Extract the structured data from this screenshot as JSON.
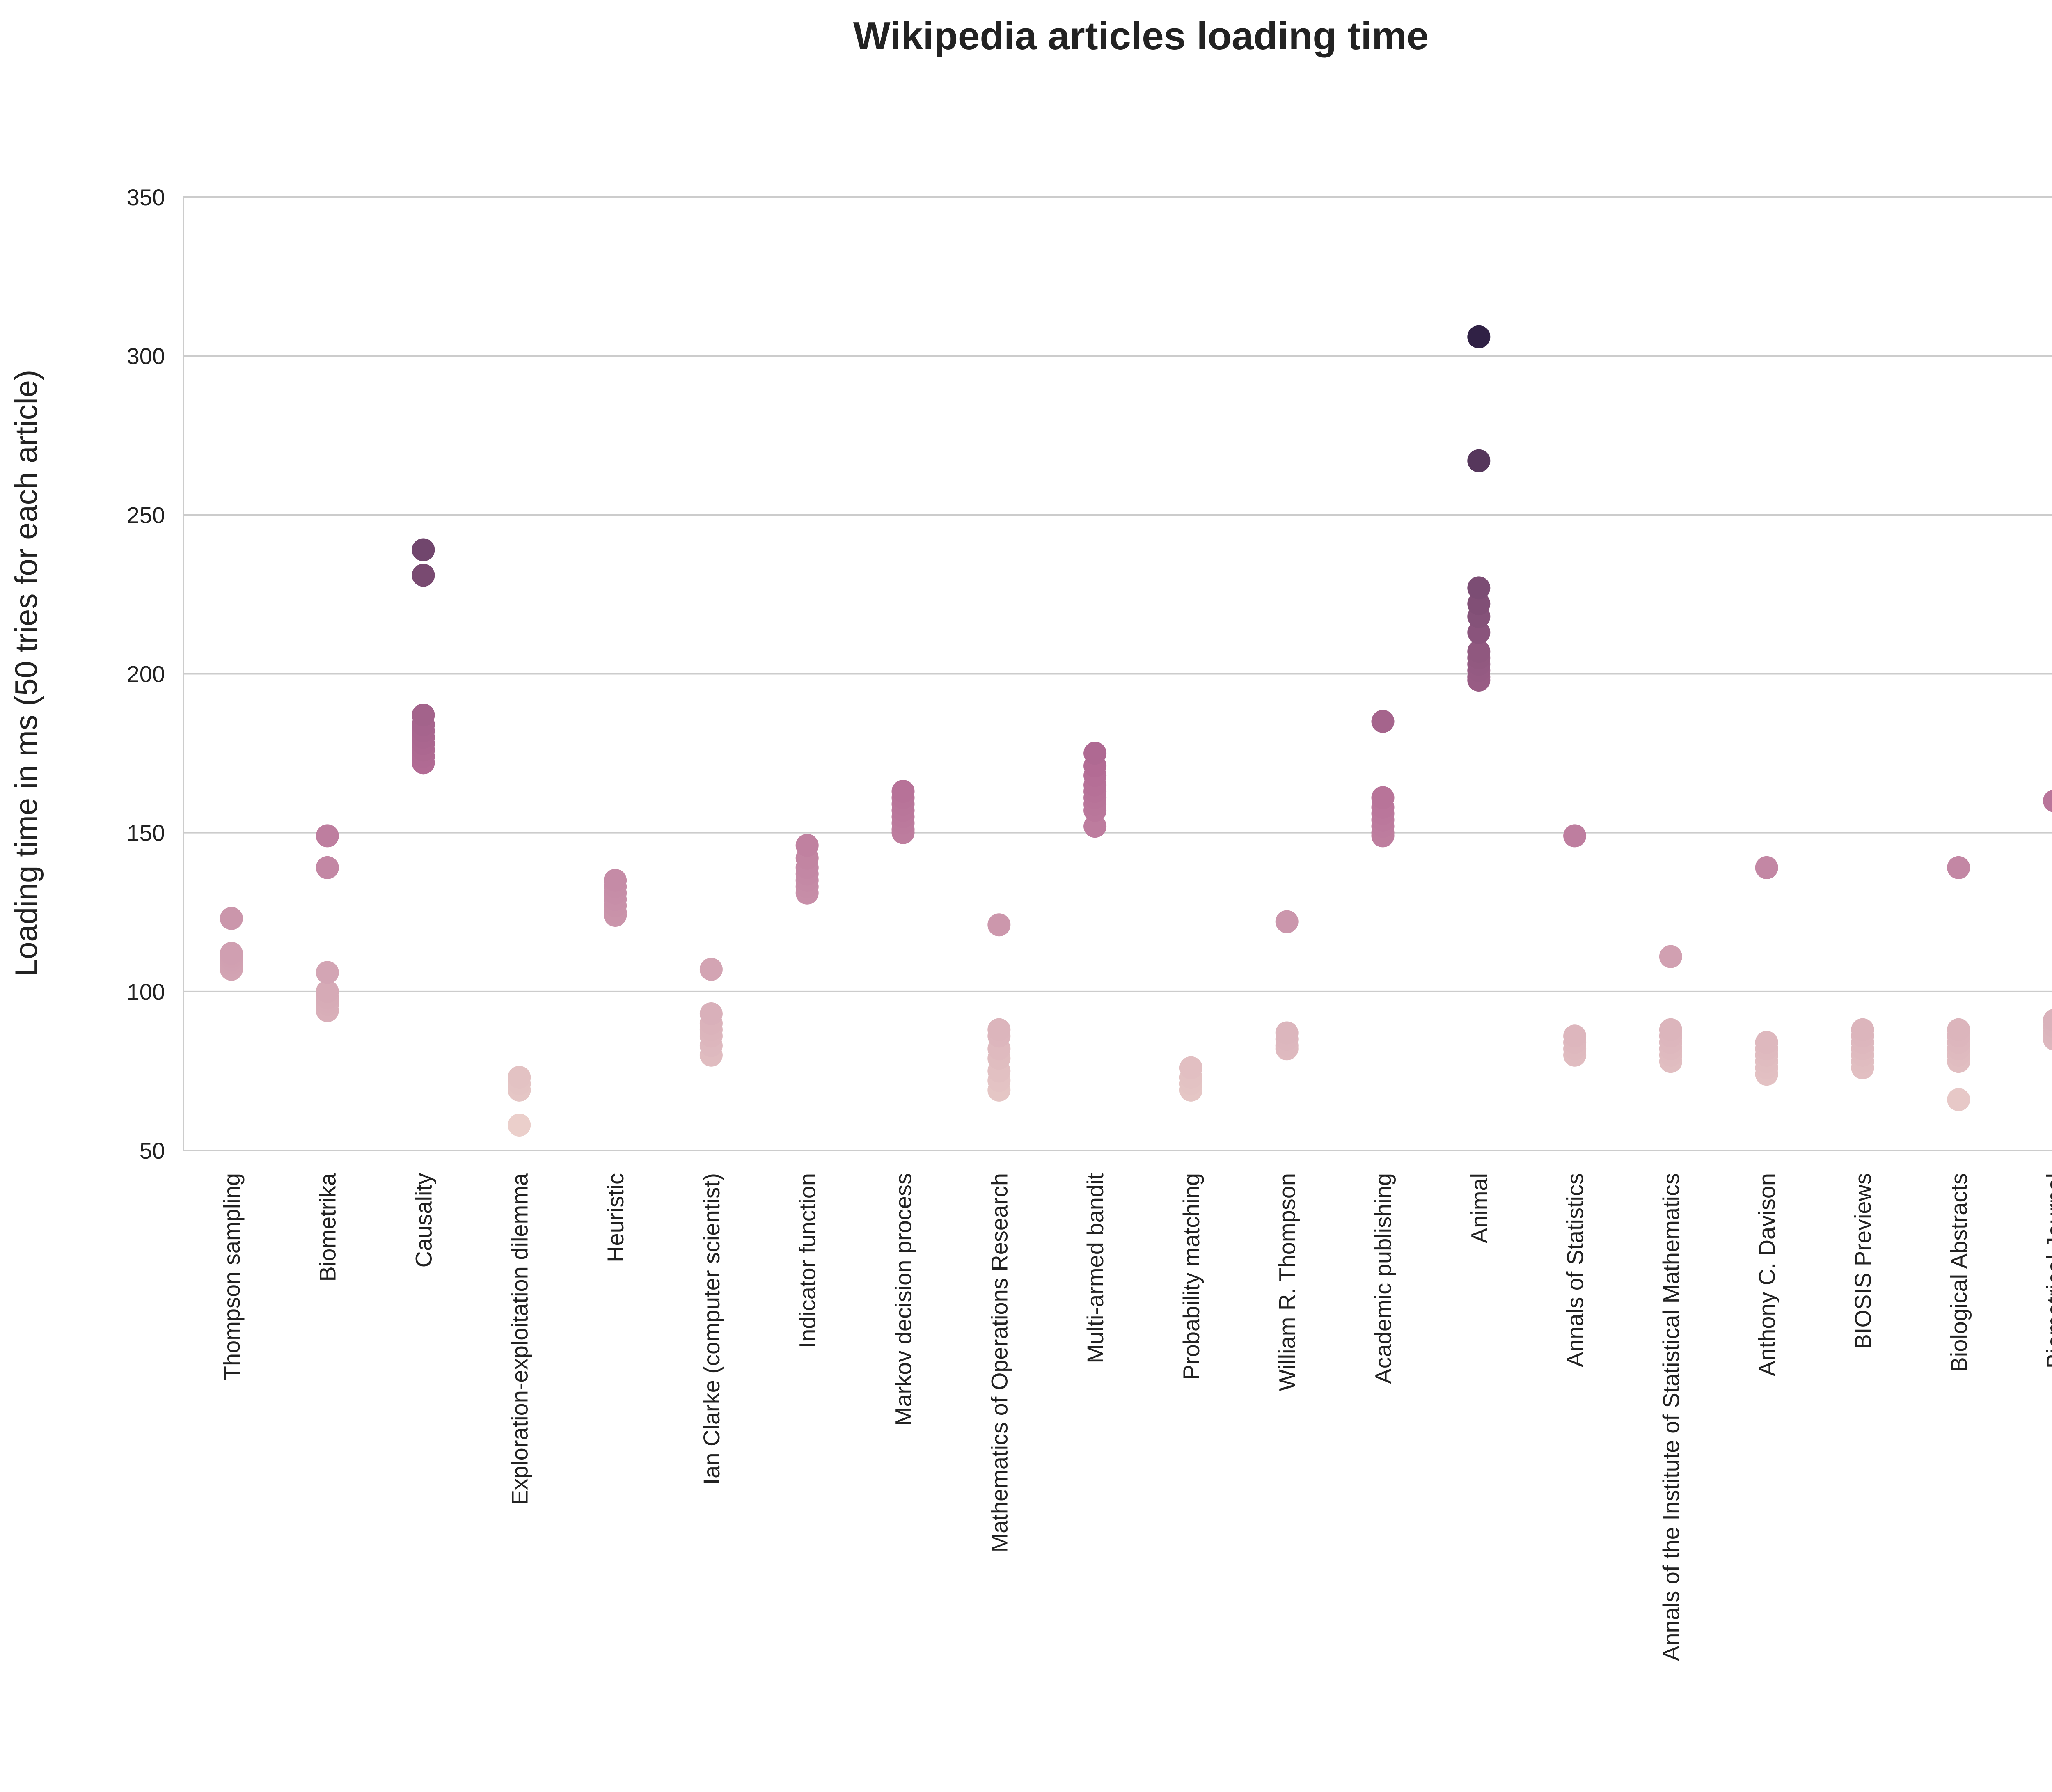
{
  "chart_data": {
    "type": "scatter",
    "title": "Wikipedia articles loading time",
    "xlabel": "",
    "ylabel": "Loading time in ms (50 tries for each article)",
    "ylim": [
      50,
      350
    ],
    "yticks": [
      50,
      100,
      150,
      200,
      250,
      300,
      350
    ],
    "grid": "horizontal",
    "color_scale": {
      "low": "#ecd2cc",
      "mid": "#b46c95",
      "high": "#2c1f43",
      "range": [
        55,
        310
      ]
    },
    "categories": [
      "Thompson sampling",
      "Biometrika",
      "Causality",
      "Exploration-exploitation dilemma",
      "Heuristic",
      "Ian Clarke (computer scientist)",
      "Indicator function",
      "Markov decision process",
      "Mathematics of Operations Research",
      "Multi-armed bandit",
      "Probability matching",
      "William R. Thompson",
      "Academic publishing",
      "Animal",
      "Annals of Statistics",
      "Annals of the Institute of Statistical Mathematics",
      "Anthony C. Davison",
      "BIOSIS Previews",
      "Biological Abstracts",
      "Biometrical Journal"
    ],
    "series": [
      {
        "category": "Thompson sampling",
        "values": [
          123,
          112,
          110,
          108,
          107,
          109,
          111
        ]
      },
      {
        "category": "Biometrika",
        "values": [
          149,
          139,
          106,
          100,
          98,
          96,
          94,
          97
        ]
      },
      {
        "category": "Causality",
        "values": [
          239,
          231,
          187,
          184,
          182,
          180,
          178,
          176,
          174,
          172
        ]
      },
      {
        "category": "Exploration-exploitation dilemma",
        "values": [
          73,
          71,
          69,
          58
        ]
      },
      {
        "category": "Heuristic",
        "values": [
          135,
          133,
          131,
          129,
          127,
          125,
          124
        ]
      },
      {
        "category": "Ian Clarke (computer scientist)",
        "values": [
          107,
          93,
          90,
          88,
          86,
          83,
          80
        ]
      },
      {
        "category": "Indicator function",
        "values": [
          146,
          142,
          139,
          137,
          135,
          133,
          131
        ]
      },
      {
        "category": "Markov decision process",
        "values": [
          163,
          161,
          159,
          157,
          155,
          153,
          151,
          150
        ]
      },
      {
        "category": "Mathematics of Operations Research",
        "values": [
          121,
          88,
          86,
          82,
          79,
          75,
          72,
          69
        ]
      },
      {
        "category": "Multi-armed bandit",
        "values": [
          175,
          171,
          168,
          165,
          163,
          161,
          159,
          157,
          152
        ]
      },
      {
        "category": "Probability matching",
        "values": [
          76,
          73,
          71,
          69
        ]
      },
      {
        "category": "William R. Thompson",
        "values": [
          122,
          87,
          85,
          83,
          82
        ]
      },
      {
        "category": "Academic publishing",
        "values": [
          185,
          161,
          158,
          156,
          154,
          152,
          150,
          149
        ]
      },
      {
        "category": "Animal",
        "values": [
          306,
          267,
          227,
          222,
          218,
          213,
          207,
          205,
          203,
          201,
          199,
          198
        ]
      },
      {
        "category": "Annals of Statistics",
        "values": [
          149,
          86,
          84,
          82,
          80
        ]
      },
      {
        "category": "Annals of the Institute of Statistical Mathematics",
        "values": [
          111,
          88,
          86,
          84,
          82,
          80,
          78
        ]
      },
      {
        "category": "Anthony C. Davison",
        "values": [
          139,
          84,
          82,
          80,
          78,
          76,
          74
        ]
      },
      {
        "category": "BIOSIS Previews",
        "values": [
          88,
          86,
          84,
          82,
          80,
          78,
          76
        ]
      },
      {
        "category": "Biological Abstracts",
        "values": [
          139,
          88,
          86,
          84,
          82,
          80,
          78,
          66
        ]
      },
      {
        "category": "Biometrical Journal",
        "values": [
          160,
          91,
          89,
          87,
          85
        ]
      }
    ]
  }
}
